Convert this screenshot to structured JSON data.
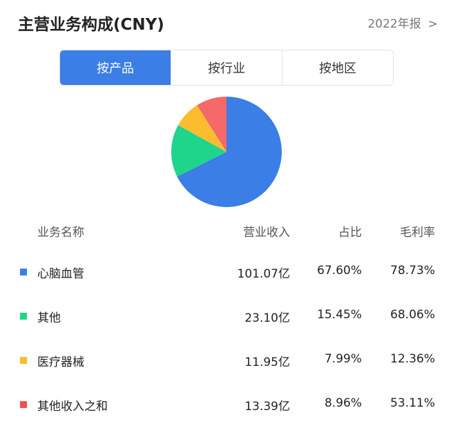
{
  "header": {
    "title": "主营业务构成(CNY)",
    "period": "2022年报",
    "period_icon": "chevron-right-icon"
  },
  "tabs": [
    {
      "label": "按产品",
      "active": true
    },
    {
      "label": "按行业",
      "active": false
    },
    {
      "label": "按地区",
      "active": false
    }
  ],
  "table": {
    "headers": [
      "业务名称",
      "营业收入",
      "占比",
      "毛利率"
    ],
    "rows": [
      {
        "name": "心脑血管",
        "revenue": "101.07亿",
        "share": "67.60%",
        "margin": "78.73%",
        "color": "#3a7ee6"
      },
      {
        "name": "其他",
        "revenue": "23.10亿",
        "share": "15.45%",
        "margin": "68.06%",
        "color": "#1fd48b"
      },
      {
        "name": "医疗器械",
        "revenue": "11.95亿",
        "share": "7.99%",
        "margin": "12.36%",
        "color": "#fbbd2d"
      },
      {
        "name": "其他收入之和",
        "revenue": "13.39亿",
        "share": "8.96%",
        "margin": "53.11%",
        "color": "#f2504e"
      }
    ]
  },
  "chart_data": {
    "type": "pie",
    "categories": [
      "心脑血管",
      "其他",
      "医疗器械",
      "其他收入之和"
    ],
    "values": [
      67.6,
      15.45,
      7.99,
      8.96
    ],
    "colors": [
      "#3a7ee6",
      "#1fd48b",
      "#fbbd2d",
      "#f56a68"
    ],
    "start": "top",
    "direction": "clockwise"
  }
}
